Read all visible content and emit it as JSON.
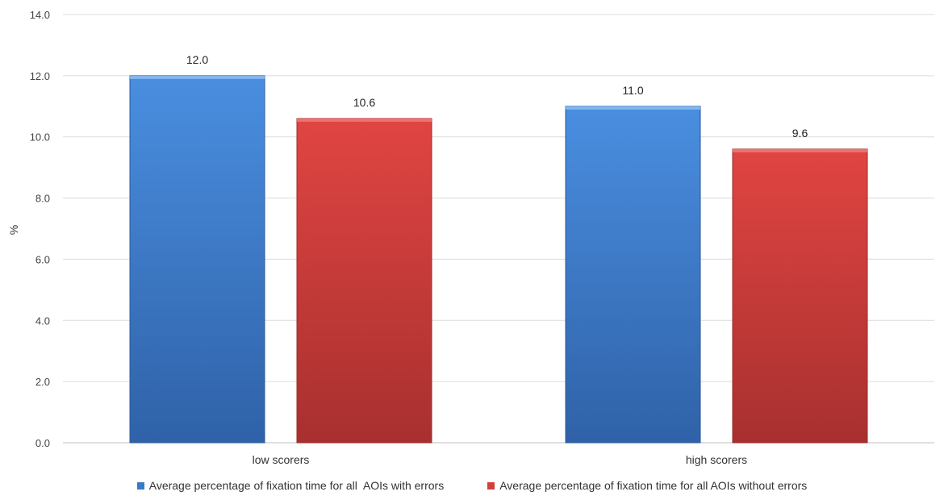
{
  "chart_data": {
    "type": "bar",
    "title": "",
    "xlabel": "",
    "ylabel": "%",
    "ylim": [
      0,
      14
    ],
    "yticks": [
      "0.0",
      "2.0",
      "4.0",
      "6.0",
      "8.0",
      "10.0",
      "12.0",
      "14.0"
    ],
    "grid": true,
    "legend_position": "bottom",
    "categories": [
      "low scorers",
      "high scorers"
    ],
    "series": [
      {
        "name": "Average percentage of fixation time for all  AOIs with errors",
        "values": [
          12.0,
          11.0
        ],
        "labels": [
          "12.0",
          "11.0"
        ],
        "color": "#3A78C9"
      },
      {
        "name": "Average percentage of fixation time for all AOIs without errors",
        "values": [
          10.6,
          9.6
        ],
        "labels": [
          "10.6",
          "9.6"
        ],
        "color": "#D13F3C"
      }
    ]
  }
}
